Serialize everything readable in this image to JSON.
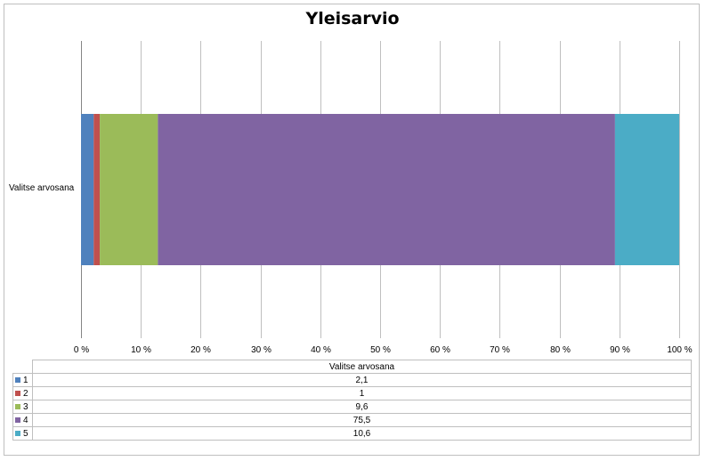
{
  "chart_data": {
    "type": "bar",
    "orientation": "horizontal",
    "stacking": "percent",
    "title": "Yleisarvio",
    "categories": [
      "Valitse arvosana"
    ],
    "series": [
      {
        "name": "1",
        "values": [
          2.1
        ],
        "color": "#4f81bd"
      },
      {
        "name": "2",
        "values": [
          1
        ],
        "color": "#c0504d"
      },
      {
        "name": "3",
        "values": [
          9.6
        ],
        "color": "#9bbb59"
      },
      {
        "name": "4",
        "values": [
          75.5
        ],
        "color": "#8064a2"
      },
      {
        "name": "5",
        "values": [
          10.6
        ],
        "color": "#4bacc6"
      }
    ],
    "value_labels": [
      "2,1",
      "1",
      "9,6",
      "75,5",
      "10,6"
    ],
    "x_ticks": [
      "0 %",
      "10 %",
      "20 %",
      "30 %",
      "40 %",
      "50 %",
      "60 %",
      "70 %",
      "80 %",
      "90 %",
      "100 %"
    ],
    "xlim": [
      0,
      100
    ],
    "grid": "vertical",
    "legend": "data-table-below"
  }
}
